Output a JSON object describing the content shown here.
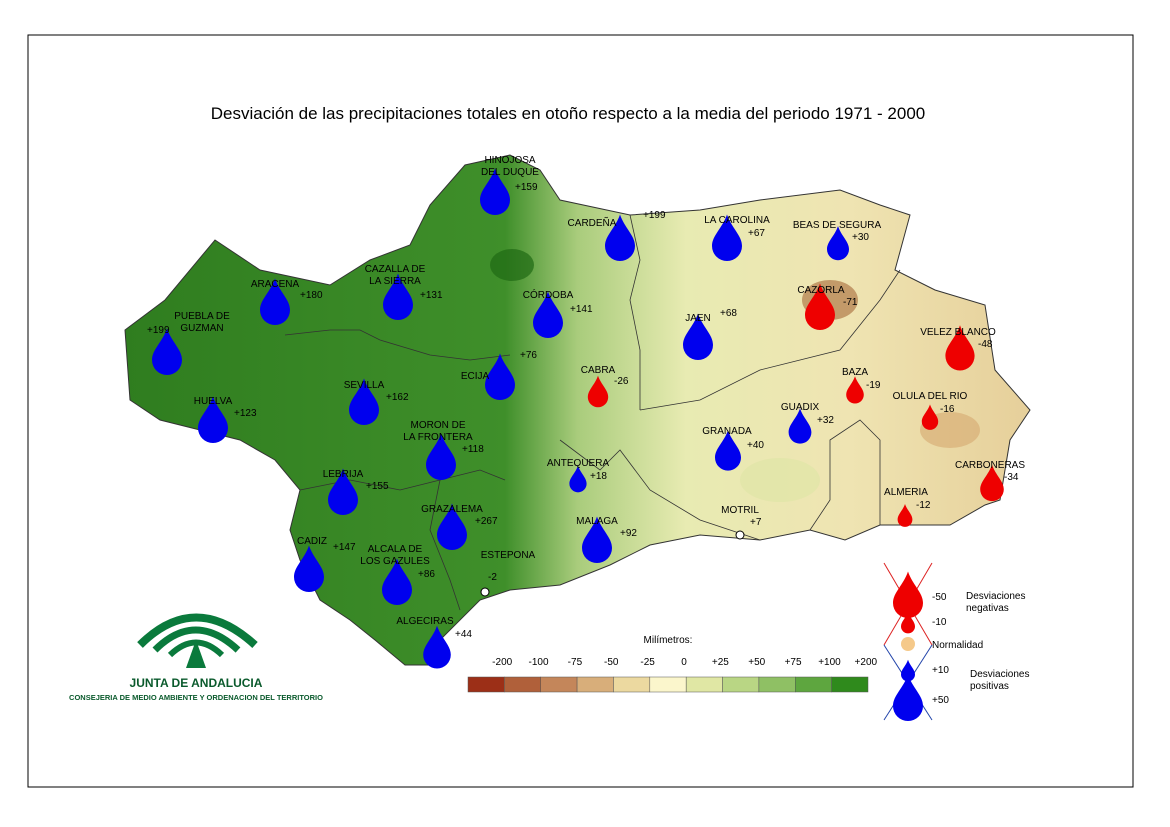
{
  "title": "Desviación de las precipitaciones totales en otoño respecto a la media del periodo 1971 - 2000",
  "stations": [
    {
      "name": [
        "HINOJOSA",
        "DEL DUQUE"
      ],
      "value": 159,
      "label": "+159"
    },
    {
      "name": [
        "CARDEÑA"
      ],
      "value": 199,
      "label": "+199"
    },
    {
      "name": [
        "LA CAROLINA"
      ],
      "value": 67,
      "label": "+67"
    },
    {
      "name": [
        "BEAS DE SEGURA"
      ],
      "value": 30,
      "label": "+30"
    },
    {
      "name": [
        "CAZORLA"
      ],
      "value": -71,
      "label": "-71"
    },
    {
      "name": [
        "VELEZ BLANCO"
      ],
      "value": -48,
      "label": "-48"
    },
    {
      "name": [
        "BAZA"
      ],
      "value": -19,
      "label": "-19"
    },
    {
      "name": [
        "OLULA DEL RIO"
      ],
      "value": -16,
      "label": "-16"
    },
    {
      "name": [
        "CARBONERAS"
      ],
      "value": -34,
      "label": "-34"
    },
    {
      "name": [
        "ALMERIA"
      ],
      "value": -12,
      "label": "-12"
    },
    {
      "name": [
        "GUADIX"
      ],
      "value": 32,
      "label": "+32"
    },
    {
      "name": [
        "GRANADA"
      ],
      "value": 40,
      "label": "+40"
    },
    {
      "name": [
        "MOTRIL"
      ],
      "value": 7,
      "label": "+7"
    },
    {
      "name": [
        "JAEN"
      ],
      "value": 68,
      "label": "+68"
    },
    {
      "name": [
        "CÓRDOBA"
      ],
      "value": 141,
      "label": "+141"
    },
    {
      "name": [
        "CABRA"
      ],
      "value": -26,
      "label": "-26"
    },
    {
      "name": [
        "ECIJA"
      ],
      "value": 76,
      "label": "+76"
    },
    {
      "name": [
        "ANTEQUERA"
      ],
      "value": 18,
      "label": "+18"
    },
    {
      "name": [
        "MALAGA"
      ],
      "value": 92,
      "label": "+92"
    },
    {
      "name": [
        "ESTEPONA"
      ],
      "value": -2,
      "label": "-2"
    },
    {
      "name": [
        "ALGECIRAS"
      ],
      "value": 44,
      "label": "+44"
    },
    {
      "name": [
        "ALCALA DE",
        "LOS GAZULES"
      ],
      "value": 86,
      "label": "+86"
    },
    {
      "name": [
        "GRAZALEMA"
      ],
      "value": 267,
      "label": "+267"
    },
    {
      "name": [
        "CADIZ"
      ],
      "value": 147,
      "label": "+147"
    },
    {
      "name": [
        "LEBRIJA"
      ],
      "value": 155,
      "label": "+155"
    },
    {
      "name": [
        "MORON DE",
        "LA FRONTERA"
      ],
      "value": 118,
      "label": "+118"
    },
    {
      "name": [
        "SEVILLA"
      ],
      "value": 162,
      "label": "+162"
    },
    {
      "name": [
        "HUELVA"
      ],
      "value": 123,
      "label": "+123"
    },
    {
      "name": [
        "PUEBLA DE",
        "GUZMAN"
      ],
      "value": 199,
      "label": "+199"
    },
    {
      "name": [
        "ARACENA"
      ],
      "value": 180,
      "label": "+180"
    },
    {
      "name": [
        "CAZALLA DE",
        "LA SIERRA"
      ],
      "value": 131,
      "label": "+131"
    }
  ],
  "scale": {
    "title": "Milímetros:",
    "labels": [
      "-200",
      "-100",
      "-75",
      "-50",
      "-25",
      "0",
      "+25",
      "+50",
      "+75",
      "+100",
      "+200"
    ],
    "colors": [
      "#9c2f17",
      "#b0603a",
      "#c4865a",
      "#d8ae7a",
      "#ecd9a0",
      "#fbf6cc",
      "#e0e7a4",
      "#b9d684",
      "#8fc064",
      "#5ea63f",
      "#2f8a1c"
    ]
  },
  "legend": {
    "negative": {
      "title": "Desviaciones negativas",
      "items": [
        {
          "value": -50,
          "label": "-50"
        },
        {
          "value": -10,
          "label": "-10"
        }
      ]
    },
    "normal": "Normalidad",
    "positive": {
      "title": "Desviaciones positivas",
      "items": [
        {
          "value": 10,
          "label": "+10"
        },
        {
          "value": 50,
          "label": "+50"
        }
      ]
    },
    "negative_color": "#ee0000",
    "positive_color": "#0000ee",
    "normal_color": "#f5c98a"
  },
  "logo": {
    "name": "JUNTA DE ANDALUCIA",
    "department": "CONSEJERIA DE MEDIO AMBIENTE Y ORDENACION DEL TERRITORIO"
  }
}
